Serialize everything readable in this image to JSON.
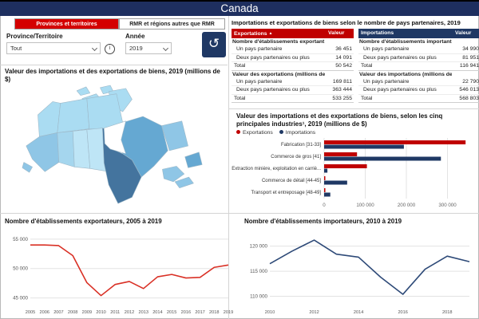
{
  "colors": {
    "header_bg": "#1E2F5F",
    "accent_red": "#D40000",
    "table_red": "#C00000",
    "navy": "#1F3864",
    "export_series": "#C00000",
    "import_series": "#1F3864",
    "export_line": "#D93025",
    "import_line": "#2E4A78",
    "grid": "#E3E3E3"
  },
  "header": {
    "title": "Canada"
  },
  "tabs": {
    "provinces": "Provinces et territoires",
    "rmr": "RMR et régions autres que RMR"
  },
  "filters": {
    "province_label": "Province/Territoire",
    "province_value": "Tout",
    "year_label": "Année",
    "year_value": "2019",
    "info_icon": "i",
    "reset_icon": "↺"
  },
  "map_panel": {
    "title": "Valeur des importations et des exportations de biens, 2019 (millions de $)"
  },
  "partners": {
    "title": "Importations et exportations de biens selon le nombre de pays partenaires, 2019",
    "exports": {
      "col_label": "Exportations",
      "col_value": "Valeur",
      "sort_icon": "▲",
      "rows": [
        {
          "label": "Nombre d'établissements exportant vers :",
          "value": "",
          "style": "section"
        },
        {
          "label": "Un pays partenaire",
          "value": "36 451",
          "style": "data"
        },
        {
          "label": "Deux pays partenaires ou plus",
          "value": "14 091",
          "style": "data"
        },
        {
          "label": "Total",
          "value": "50 542",
          "style": "total"
        },
        {
          "label": "Valeur des exportations (millions de $)",
          "value": "",
          "style": "section"
        },
        {
          "label": "Un pays partenaire",
          "value": "169 811",
          "style": "data"
        },
        {
          "label": "Deux pays partenaires ou plus",
          "value": "363 444",
          "style": "data"
        },
        {
          "label": "Total",
          "value": "533 255",
          "style": "total"
        }
      ]
    },
    "imports": {
      "col_label": "Importations",
      "col_value": "Valeur",
      "rows": [
        {
          "label": "Nombre d'établissements important de :",
          "value": "",
          "style": "section"
        },
        {
          "label": "Un pays partenaire",
          "value": "34 990",
          "style": "data"
        },
        {
          "label": "Deux pays partenaires ou plus",
          "value": "81 951",
          "style": "data"
        },
        {
          "label": "Total",
          "value": "116 941",
          "style": "total"
        },
        {
          "label": "Valeur des importations (millions de $)",
          "value": "",
          "style": "section"
        },
        {
          "label": "Un pays partenaire",
          "value": "22 790",
          "style": "data"
        },
        {
          "label": "Deux pays partenaires ou plus",
          "value": "546 013",
          "style": "data"
        },
        {
          "label": "Total",
          "value": "568 803",
          "style": "total"
        }
      ]
    }
  },
  "industry_panel": {
    "title": "Valeur des importations et des exportations de biens, selon les cinq principales industries¹, 2019 (millions de $)",
    "legend": [
      "Exportations",
      "Importations"
    ]
  },
  "exporters_panel": {
    "title": "Nombre d'établissements exportateurs, 2005 à 2019"
  },
  "importers_panel": {
    "title": "Nombre d'établissements importateurs, 2010 à 2019"
  },
  "chart_data": {
    "industry_bar": {
      "type": "bar",
      "orientation": "horizontal",
      "categories": [
        "Fabrication [31-33]",
        "Commerce de gros [41]",
        "Extraction minière, exploitation en carriè...",
        "Commerce de détail [44-45]",
        "Transport et entreposage [48-49]"
      ],
      "series": [
        {
          "name": "Exportations",
          "values": [
            344000,
            80000,
            104000,
            2000,
            3000
          ]
        },
        {
          "name": "Importations",
          "values": [
            194000,
            284000,
            8000,
            56000,
            15000
          ]
        }
      ],
      "xmax": 365000,
      "xticks": [
        {
          "v": 0,
          "label": "0"
        },
        {
          "v": 100000,
          "label": "100 000"
        },
        {
          "v": 200000,
          "label": "200 000"
        },
        {
          "v": 300000,
          "label": "300 000"
        }
      ]
    },
    "exporters_line": {
      "type": "line",
      "categories": [
        "2005",
        "2006",
        "2007",
        "2008",
        "2009",
        "2010",
        "2011",
        "2012",
        "2013",
        "2014",
        "2015",
        "2016",
        "2017",
        "2018",
        "2019"
      ],
      "values": [
        54000,
        54000,
        53900,
        52200,
        47600,
        45400,
        47300,
        47800,
        46600,
        48600,
        49000,
        48400,
        48500,
        50200,
        50600
      ],
      "ymin": 44000,
      "ymax": 56200,
      "yticks": [
        {
          "v": 45000,
          "label": "45 000"
        },
        {
          "v": 50000,
          "label": "50 000"
        },
        {
          "v": 55000,
          "label": "55 000"
        }
      ],
      "xticks": "all"
    },
    "importers_line": {
      "type": "line",
      "categories": [
        "2010",
        "2011",
        "2012",
        "2013",
        "2014",
        "2015",
        "2016",
        "2017",
        "2018",
        "2019"
      ],
      "values": [
        116500,
        119000,
        121200,
        118400,
        117800,
        113800,
        110400,
        115400,
        118000,
        116900
      ],
      "ymin": 108500,
      "ymax": 122800,
      "yticks": [
        {
          "v": 110000,
          "label": "110 000"
        },
        {
          "v": 115000,
          "label": "115 000"
        },
        {
          "v": 120000,
          "label": "120 000"
        }
      ],
      "xticks": [
        "2010",
        "2012",
        "2014",
        "2016",
        "2018"
      ]
    }
  }
}
